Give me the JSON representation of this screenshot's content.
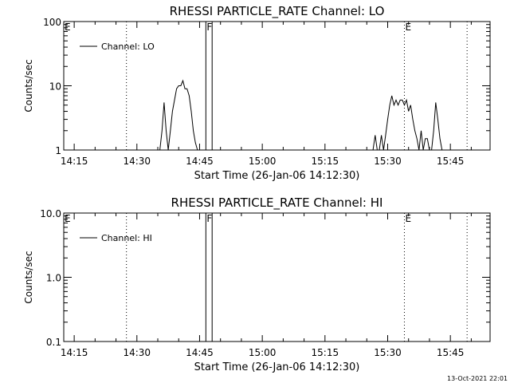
{
  "chart_data": [
    {
      "type": "line",
      "title": "RHESSI PARTICLE_RATE Channel: LO",
      "xlabel": "Start Time (26-Jan-06 14:12:30)",
      "ylabel": "Counts/sec",
      "yscale": "log",
      "ylim": [
        1,
        100
      ],
      "xlim": [
        "14:12:30",
        "15:54:30"
      ],
      "xticks": [
        "14:15",
        "14:30",
        "14:45",
        "15:00",
        "15:15",
        "15:30",
        "15:45"
      ],
      "yticks": [
        "1",
        "10",
        "100"
      ],
      "legend": {
        "position": "top-left",
        "entries": [
          "Channel: LO"
        ]
      },
      "grid": false,
      "series": [
        {
          "name": "Channel: LO",
          "segments": [
            {
              "x": [
                "14:35:30",
                "14:36:00",
                "14:36:30",
                "14:37:00",
                "14:37:30",
                "14:38:00",
                "14:38:30",
                "14:39:00",
                "14:39:30",
                "14:40:00",
                "14:40:30",
                "14:41:00",
                "14:41:30",
                "14:42:00",
                "14:42:30",
                "14:43:00",
                "14:43:30",
                "14:44:00",
                "14:44:30"
              ],
              "y": [
                1,
                2,
                5.5,
                2,
                1,
                2,
                4,
                6,
                9,
                10,
                10,
                12,
                9,
                9,
                7,
                4,
                2,
                1.3,
                1
              ]
            },
            {
              "x": [
                "15:26:30",
                "15:27:00",
                "15:27:30",
                "15:28:00",
                "15:28:30",
                "15:29:00",
                "15:29:30",
                "15:30:00",
                "15:30:30",
                "15:31:00",
                "15:31:30",
                "15:32:00",
                "15:32:30",
                "15:33:00",
                "15:33:30",
                "15:34:00",
                "15:34:30",
                "15:35:00",
                "15:35:30",
                "15:36:00",
                "15:36:30",
                "15:37:00",
                "15:37:30",
                "15:38:00",
                "15:38:30",
                "15:39:00",
                "15:39:30",
                "15:40:00"
              ],
              "y": [
                1,
                1.7,
                1,
                1,
                1.7,
                1,
                1.7,
                3,
                5,
                7,
                5,
                6,
                5,
                6,
                6,
                5,
                6,
                4,
                5,
                3,
                2,
                1.5,
                1,
                2,
                1,
                1.5,
                1.5,
                1
              ]
            },
            {
              "x": [
                "15:40:30",
                "15:41:00",
                "15:41:30",
                "15:42:00",
                "15:42:30",
                "15:43:00"
              ],
              "y": [
                1,
                2,
                5.5,
                3,
                1.5,
                1
              ]
            }
          ]
        }
      ],
      "annotations": [
        {
          "text": "E",
          "x": "14:12:30",
          "style": "dotted-line"
        },
        {
          "text": "",
          "x": "14:27:30",
          "style": "dotted-line"
        },
        {
          "text": "F",
          "x": "14:46:30",
          "style": "solid-line"
        },
        {
          "text": "",
          "x": "14:48:00",
          "style": "solid-line"
        },
        {
          "text": "E",
          "x": "15:34:00",
          "style": "dotted-line"
        },
        {
          "text": "",
          "x": "15:49:00",
          "style": "dotted-line"
        }
      ]
    },
    {
      "type": "line",
      "title": "RHESSI PARTICLE_RATE Channel: HI",
      "xlabel": "Start Time (26-Jan-06 14:12:30)",
      "ylabel": "Counts/sec",
      "yscale": "log",
      "ylim": [
        0.1,
        10
      ],
      "xlim": [
        "14:12:30",
        "15:54:30"
      ],
      "xticks": [
        "14:15",
        "14:30",
        "14:45",
        "15:00",
        "15:15",
        "15:30",
        "15:45"
      ],
      "yticks": [
        "0.1",
        "1.0",
        "10.0"
      ],
      "legend": {
        "position": "top-left",
        "entries": [
          "Channel: HI"
        ]
      },
      "grid": false,
      "series": [
        {
          "name": "Channel: HI",
          "segments": []
        }
      ],
      "annotations": [
        {
          "text": "E",
          "x": "14:12:30",
          "style": "dotted-line"
        },
        {
          "text": "",
          "x": "14:27:30",
          "style": "dotted-line"
        },
        {
          "text": "F",
          "x": "14:46:30",
          "style": "solid-line"
        },
        {
          "text": "",
          "x": "14:48:00",
          "style": "solid-line"
        },
        {
          "text": "E",
          "x": "15:34:00",
          "style": "dotted-line"
        },
        {
          "text": "",
          "x": "15:49:00",
          "style": "dotted-line"
        }
      ]
    }
  ],
  "footer": {
    "timestamp": "13-Oct-2021 22:01"
  }
}
